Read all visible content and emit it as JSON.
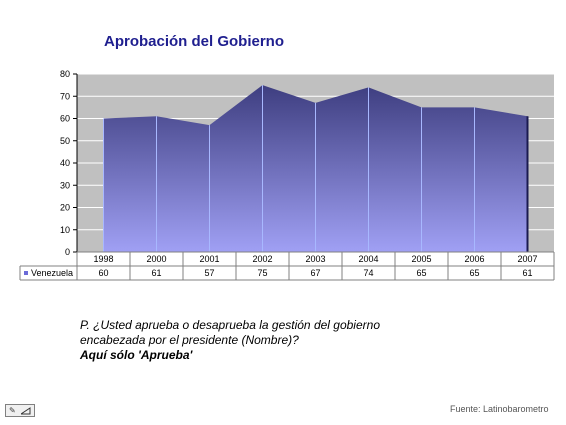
{
  "title": "Aprobación del Gobierno",
  "question": {
    "line1": "P. ¿Usted aprueba o desaprueba la gestión del gobierno",
    "line2": "encabezada por el presidente (Nombre)?",
    "note": "Aquí sólo 'Aprueba'"
  },
  "source": "Fuente: Latinobarometro",
  "icons": {
    "nav_pen": "pen-icon",
    "nav_arrow": "arrow-icon"
  },
  "colors": {
    "title": "#1f1f8f",
    "area_top": "#3e3e80",
    "area_bottom": "#a0a0f4",
    "plot_background": "#c0c0c0",
    "legend_marker": "#6b6bd8"
  },
  "chart_data": {
    "type": "area",
    "categories": [
      "1998",
      "2000",
      "2001",
      "2002",
      "2003",
      "2004",
      "2005",
      "2006",
      "2007"
    ],
    "series": [
      {
        "name": "Venezuela",
        "values": [
          60,
          61,
          57,
          75,
          67,
          74,
          65,
          65,
          61
        ]
      }
    ],
    "ylim": [
      0,
      80
    ],
    "yticks": [
      "0",
      "10",
      "20",
      "30",
      "40",
      "50",
      "60",
      "70",
      "80"
    ],
    "grid": true,
    "data_table": true,
    "legend": "data-table-row"
  }
}
